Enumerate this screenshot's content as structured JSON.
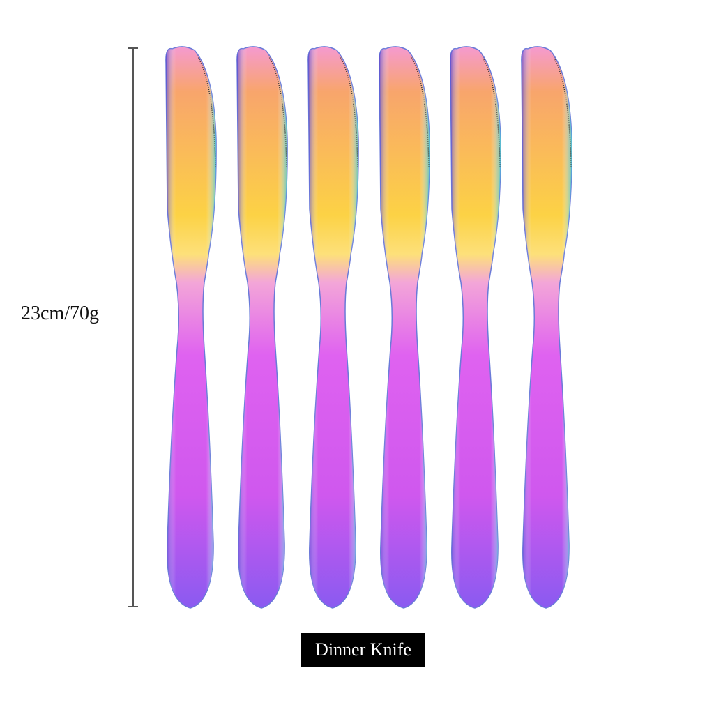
{
  "dimension_label": "23cm/70g",
  "caption": "Dinner Knife",
  "knife_count": 6,
  "colors": {
    "blade_top": "#f7a66e",
    "blade_mid": "#fbd447",
    "handle": "#d65cf0",
    "handle_edge": "#7a55e8",
    "caption_bg": "#000000",
    "caption_text": "#ffffff"
  }
}
